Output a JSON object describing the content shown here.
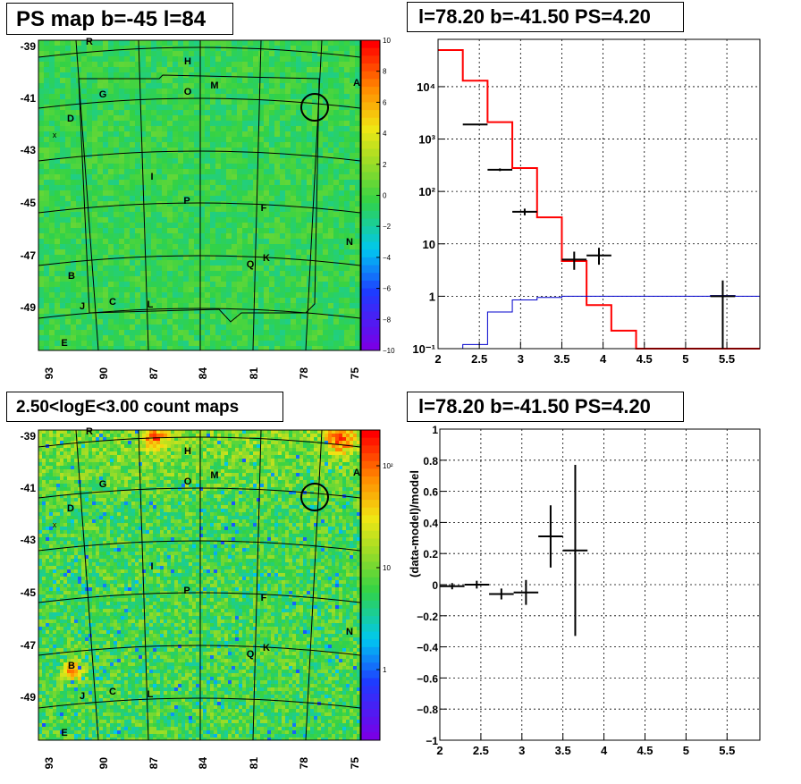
{
  "colors": {
    "map_bg": "#55cc44",
    "hist_black": "#000000",
    "hist_red": "#ff0000",
    "hist_blue": "#0000cc"
  },
  "panels": {
    "ps_map": {
      "title": "PS map b=-45 l=84",
      "colorbar_ticks": [
        "10",
        "8",
        "6",
        "4",
        "2",
        "0",
        "−2",
        "−4",
        "−6",
        "−8",
        "−10"
      ],
      "colorbar_range": [
        -10,
        10
      ],
      "y_ticks": [
        "-39",
        "-41",
        "-43",
        "-45",
        "-47",
        "-49"
      ],
      "x_ticks": [
        "93",
        "90",
        "87",
        "84",
        "81",
        "78",
        "75"
      ],
      "source_labels": [
        "R",
        "H",
        "M",
        "O",
        "G",
        "A",
        "D",
        "I",
        "P",
        "F",
        "N",
        "K",
        "Q",
        "B",
        "C",
        "L",
        "J",
        "E"
      ],
      "marker": "x"
    },
    "count_map": {
      "title": "2.50<logE<3.00 count maps",
      "colorbar_ticks": [
        "10²",
        "10",
        "1"
      ],
      "colorbar_scale": "log",
      "y_ticks": [
        "-39",
        "-41",
        "-43",
        "-45",
        "-47",
        "-49"
      ],
      "x_ticks": [
        "93",
        "90",
        "87",
        "84",
        "81",
        "78",
        "75"
      ],
      "source_labels": [
        "R",
        "H",
        "M",
        "O",
        "G",
        "A",
        "D",
        "I",
        "P",
        "F",
        "N",
        "K",
        "Q",
        "B",
        "C",
        "L",
        "J",
        "E"
      ],
      "marker": "x"
    },
    "spectrum": {
      "title": "l=78.20 b=-41.50 PS=4.20"
    },
    "residual": {
      "title": "l=78.20 b=-41.50 PS=4.20"
    }
  },
  "chart_data": [
    {
      "type": "heatmap",
      "title": "PS map b=-45 l=84",
      "x_ticks": [
        93,
        90,
        87,
        84,
        81,
        78,
        75
      ],
      "y_ticks": [
        -39,
        -41,
        -43,
        -45,
        -47,
        -49
      ],
      "zlim": [
        -10,
        10
      ],
      "source_labels": [
        "R",
        "H",
        "M",
        "O",
        "G",
        "A",
        "D",
        "I",
        "P",
        "F",
        "N",
        "K",
        "Q",
        "B",
        "C",
        "L",
        "J",
        "E"
      ]
    },
    {
      "type": "heatmap",
      "title": "2.50<logE<3.00 count maps",
      "x_ticks": [
        93,
        90,
        87,
        84,
        81,
        78,
        75
      ],
      "y_ticks": [
        -39,
        -41,
        -43,
        -45,
        -47,
        -49
      ],
      "z_scale": "log",
      "z_ticks": [
        1,
        10,
        100
      ],
      "source_labels": [
        "R",
        "H",
        "M",
        "O",
        "G",
        "A",
        "D",
        "I",
        "P",
        "F",
        "N",
        "K",
        "Q",
        "B",
        "C",
        "L",
        "J",
        "E"
      ]
    },
    {
      "type": "line",
      "title": "l=78.20 b=-41.50 PS=4.20",
      "x_scale": "linear",
      "y_scale": "log",
      "xlim": [
        2,
        5.9
      ],
      "ylim": [
        0.1,
        80000
      ],
      "x_ticks": [
        "2",
        "2.5",
        "3",
        "3.5",
        "4",
        "4.5",
        "5",
        "5.5"
      ],
      "y_ticks": [
        {
          "value": 0.1,
          "label": "10⁻¹"
        },
        {
          "value": 1,
          "label": "1"
        },
        {
          "value": 10,
          "label": "10"
        },
        {
          "value": 100,
          "label": "10²"
        },
        {
          "value": 1000,
          "label": "10³"
        },
        {
          "value": 10000,
          "label": "10⁴"
        }
      ],
      "grid": true,
      "series": [
        {
          "color": "#ff0000",
          "style": "step",
          "edges": [
            2.0,
            2.3,
            2.6,
            2.9,
            3.2,
            3.5,
            3.8,
            4.1,
            4.4,
            5.9
          ],
          "values": [
            50000,
            13000,
            2100,
            280,
            32,
            4.7,
            0.68,
            0.22,
            0.1
          ]
        },
        {
          "color": "#0000cc",
          "style": "step",
          "edges": [
            2.0,
            2.3,
            2.6,
            2.9,
            3.2,
            3.5,
            5.3,
            5.6,
            5.9
          ],
          "values": [
            0.1,
            0.12,
            0.5,
            0.85,
            0.95,
            1.0,
            1.03,
            1.0
          ]
        },
        {
          "color": "#000000",
          "style": "errorbars",
          "points": [
            {
              "x": 2.45,
              "y": 1900,
              "xerr": 0.15,
              "ylo": 1850,
              "yhi": 1950
            },
            {
              "x": 2.75,
              "y": 260,
              "xerr": 0.15,
              "ylo": 245,
              "yhi": 275
            },
            {
              "x": 3.05,
              "y": 41,
              "xerr": 0.15,
              "ylo": 35,
              "yhi": 47
            },
            {
              "x": 3.65,
              "y": 5,
              "xerr": 0.15,
              "ylo": 3.2,
              "yhi": 7.1
            },
            {
              "x": 3.95,
              "y": 6,
              "xerr": 0.15,
              "ylo": 4.0,
              "yhi": 8.4
            },
            {
              "x": 5.45,
              "y": 1,
              "xerr": 0.15,
              "ylo": 0.1,
              "yhi": 2.0
            }
          ]
        }
      ]
    },
    {
      "type": "scatter",
      "title": "l=78.20 b=-41.50 PS=4.20",
      "ylabel": "(data-model)/model",
      "xlim": [
        2,
        5.9
      ],
      "ylim": [
        -1,
        1
      ],
      "x_ticks": [
        "2",
        "2.5",
        "3",
        "3.5",
        "4",
        "4.5",
        "5",
        "5.5"
      ],
      "y_ticks": [
        "−1",
        "−0.8",
        "−0.6",
        "−0.4",
        "−0.2",
        "0",
        "0.2",
        "0.4",
        "0.6",
        "0.8",
        "1"
      ],
      "grid": true,
      "points": [
        {
          "x": 2.15,
          "y": -0.01,
          "xerr": 0.15,
          "yerr": 0.02
        },
        {
          "x": 2.45,
          "y": 0.0,
          "xerr": 0.15,
          "yerr": 0.025
        },
        {
          "x": 2.75,
          "y": -0.06,
          "xerr": 0.15,
          "yerr": 0.035
        },
        {
          "x": 3.05,
          "y": -0.05,
          "xerr": 0.15,
          "yerr": 0.08
        },
        {
          "x": 3.35,
          "y": 0.31,
          "xerr": 0.15,
          "yerr": 0.2
        },
        {
          "x": 3.65,
          "y": 0.22,
          "xerr": 0.15,
          "yerr": 0.55
        }
      ]
    }
  ]
}
